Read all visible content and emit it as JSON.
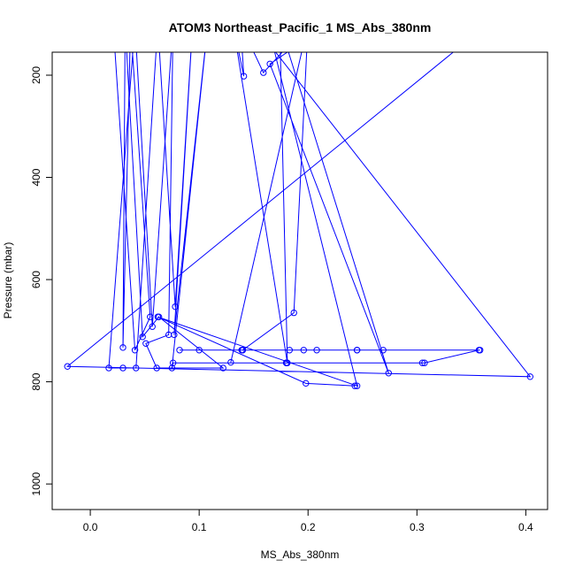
{
  "chart_data": {
    "type": "line",
    "title": "ATOM3 Northeast_Pacific_1 MS_Abs_380nm",
    "xlabel": "MS_Abs_380nm",
    "ylabel": "Pressure (mbar)",
    "xlim": [
      -0.035,
      0.42
    ],
    "ylim": [
      1050,
      155
    ],
    "y_axis_reversed": true,
    "grid": false,
    "legend": "none",
    "x_ticks": [
      0.0,
      0.1,
      0.2,
      0.3,
      0.4
    ],
    "x_tick_labels": [
      "0.0",
      "0.1",
      "0.2",
      "0.3",
      "0.4"
    ],
    "y_ticks": [
      200,
      400,
      600,
      800,
      1000
    ],
    "y_tick_labels": [
      "200",
      "400",
      "600",
      "800",
      "1000"
    ],
    "series": [
      {
        "color": "#0000ff",
        "marker": "open-circle",
        "points": [
          {
            "x": 0.021,
            "y": 100,
            "marker": false
          },
          {
            "x": 0.041,
            "y": 738
          },
          {
            "x": 0.055,
            "y": 673
          },
          {
            "x": 0.037,
            "y": 100,
            "marker": false
          },
          {
            "x": 0.03,
            "y": 733
          },
          {
            "x": 0.032,
            "y": 100,
            "marker": false
          },
          {
            "x": 0.048,
            "y": 712
          },
          {
            "x": 0.063,
            "y": 673
          },
          {
            "x": 0.122,
            "y": 773
          },
          {
            "x": 0.061,
            "y": 773
          },
          {
            "x": 0.051,
            "y": 725
          },
          {
            "x": 0.072,
            "y": 708
          },
          {
            "x": 0.076,
            "y": 100,
            "marker": false
          },
          {
            "x": 0.057,
            "y": 692
          },
          {
            "x": 0.041,
            "y": 100,
            "marker": false
          },
          {
            "x": 0.017,
            "y": 773
          },
          {
            "x": 0.018,
            "y": 773,
            "marker": false
          },
          {
            "x": 0.03,
            "y": 773
          },
          {
            "x": 0.042,
            "y": 773
          },
          {
            "x": 0.062,
            "y": 100,
            "marker": false
          },
          {
            "x": 0.078,
            "y": 653
          },
          {
            "x": 0.094,
            "y": 100,
            "marker": false
          },
          {
            "x": 0.077,
            "y": 708
          },
          {
            "x": 0.108,
            "y": 100,
            "marker": false
          },
          {
            "x": 0.075,
            "y": 773
          },
          {
            "x": 0.076,
            "y": 763
          },
          {
            "x": 0.18,
            "y": 763
          },
          {
            "x": 0.18,
            "y": 763
          },
          {
            "x": 0.305,
            "y": 763
          },
          {
            "x": 0.307,
            "y": 763
          },
          {
            "x": 0.357,
            "y": 738
          },
          {
            "x": 0.358,
            "y": 738
          },
          {
            "x": 0.082,
            "y": 738
          },
          {
            "x": 0.1,
            "y": 738
          },
          {
            "x": 0.139,
            "y": 738
          },
          {
            "x": 0.14,
            "y": 738
          },
          {
            "x": 0.183,
            "y": 738
          },
          {
            "x": 0.196,
            "y": 738
          },
          {
            "x": 0.208,
            "y": 738
          },
          {
            "x": 0.245,
            "y": 738
          },
          {
            "x": 0.269,
            "y": 738
          },
          {
            "x": 0.245,
            "y": 738
          },
          {
            "x": 0.14,
            "y": 738
          },
          {
            "x": 0.187,
            "y": 665
          },
          {
            "x": 0.2,
            "y": 100,
            "marker": false
          },
          {
            "x": 0.129,
            "y": 762
          },
          {
            "x": 0.2,
            "y": 100,
            "marker": false
          },
          {
            "x": 0.159,
            "y": 195
          },
          {
            "x": 0.138,
            "y": 100,
            "marker": false
          },
          {
            "x": 0.141,
            "y": 202
          },
          {
            "x": 0.131,
            "y": 100,
            "marker": false
          },
          {
            "x": 0.181,
            "y": 763
          },
          {
            "x": 0.174,
            "y": 100,
            "marker": false
          },
          {
            "x": 0.274,
            "y": 783
          },
          {
            "x": 0.165,
            "y": 178
          },
          {
            "x": 0.181,
            "y": 155,
            "marker": false
          },
          {
            "x": 0.21,
            "y": 140,
            "marker": false
          },
          {
            "x": 0.15,
            "y": 100,
            "marker": false
          },
          {
            "x": 0.404,
            "y": 790
          },
          {
            "x": -0.021,
            "y": 770
          },
          {
            "x": 0.365,
            "y": 100,
            "marker": false
          },
          {
            "x": 0.163,
            "y": 100,
            "marker": false
          },
          {
            "x": 0.245,
            "y": 808
          },
          {
            "x": 0.062,
            "y": 673
          },
          {
            "x": 0.198,
            "y": 803
          },
          {
            "x": 0.243,
            "y": 808
          }
        ]
      }
    ]
  }
}
